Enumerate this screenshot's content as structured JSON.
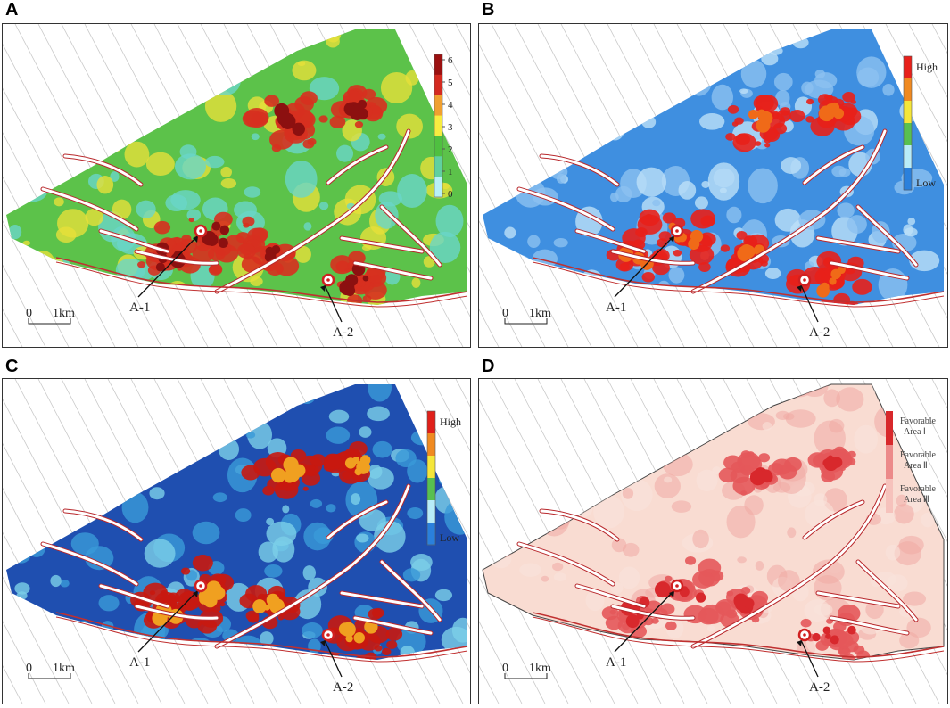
{
  "panels": [
    {
      "letter": "A",
      "title": "",
      "legend": {
        "type": "numeric",
        "ticks": [
          "6",
          "5",
          "4",
          "3",
          "2",
          "1",
          "0"
        ],
        "colors": [
          "#9b1010",
          "#d42a20",
          "#f0a030",
          "#f7ec40",
          "#4fc040",
          "#60d0a0",
          "#b8f0f8"
        ]
      },
      "wells": [
        {
          "label": "A-1"
        },
        {
          "label": "A-2"
        }
      ],
      "scale": {
        "zero": "0",
        "dist": "1km"
      },
      "palette": {
        "base": "#5cc24a",
        "mid": "#e6e03a",
        "hot": "#d7301f",
        "max": "#8c1010",
        "cool": "#6ad6c8"
      }
    },
    {
      "letter": "B",
      "legend": {
        "type": "qualitative",
        "high": "High",
        "low": "Low",
        "colors": [
          "#e8201a",
          "#f08a20",
          "#f5e63a",
          "#58c050",
          "#b8ecf8",
          "#2a80dc"
        ]
      },
      "wells": [
        {
          "label": "A-1"
        },
        {
          "label": "A-2"
        }
      ],
      "scale": {
        "zero": "0",
        "dist": "1km"
      },
      "palette": {
        "base": "#3f8fe0",
        "mid": "#8cc0f0",
        "hot": "#e8201a",
        "max": "#f06a18",
        "cool": "#bde0f8"
      }
    },
    {
      "letter": "C",
      "legend": {
        "type": "qualitative",
        "high": "High",
        "low": "Low",
        "colors": [
          "#e0201a",
          "#f08a20",
          "#f5e63a",
          "#58c050",
          "#b8ecf8",
          "#2a80dc"
        ]
      },
      "wells": [
        {
          "label": "A-1"
        },
        {
          "label": "A-2"
        }
      ],
      "scale": {
        "zero": "0",
        "dist": "1km"
      },
      "palette": {
        "base": "#1f4fb0",
        "mid": "#3a9ad8",
        "hot": "#c81810",
        "max": "#f0a020",
        "cool": "#7cd0e8"
      }
    },
    {
      "letter": "D",
      "legend": {
        "type": "classes",
        "items": [
          "Favorable Area Ⅰ",
          "Favorable Area Ⅱ",
          "Favorable Area Ⅲ"
        ],
        "colors": [
          "#d8282c",
          "#ec8a8a",
          "#f6c2bc"
        ]
      },
      "wells": [
        {
          "label": "A-1"
        },
        {
          "label": "A-2"
        }
      ],
      "scale": {
        "zero": "0",
        "dist": "1km"
      },
      "palette": {
        "base": "#f9dcd2",
        "mid": "#f1aaa4",
        "hot": "#e4585a",
        "max": "#d8282c",
        "cool": "#f9e4dc"
      }
    }
  ]
}
